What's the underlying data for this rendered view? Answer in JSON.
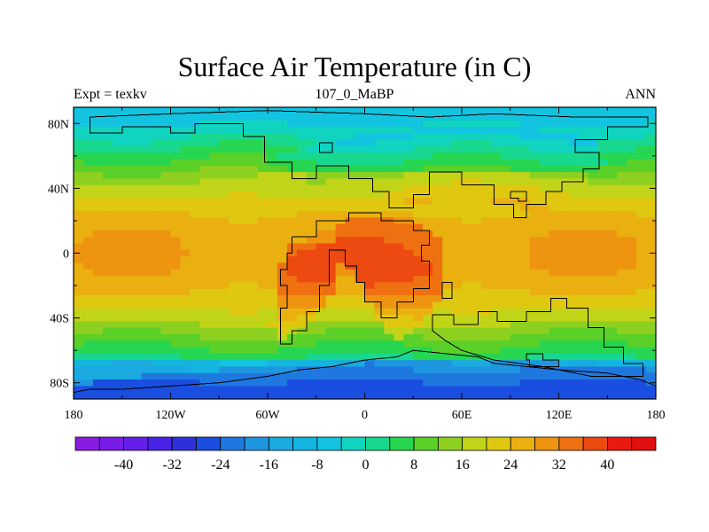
{
  "chart_data": {
    "type": "heatmap",
    "title": "Surface Air Temperature (in C)",
    "left_label": "Expt = texkv",
    "center_label": "107_0_MaBP",
    "right_label": "ANN",
    "x_range": [
      -180,
      180
    ],
    "y_range": [
      -90,
      90
    ],
    "x_ticks": [
      {
        "value": -180,
        "label": "180"
      },
      {
        "value": -120,
        "label": "120W"
      },
      {
        "value": -60,
        "label": "60W"
      },
      {
        "value": 0,
        "label": "0"
      },
      {
        "value": 60,
        "label": "60E"
      },
      {
        "value": 120,
        "label": "120E"
      },
      {
        "value": 180,
        "label": "180"
      }
    ],
    "y_ticks": [
      {
        "value": 80,
        "label": "80N"
      },
      {
        "value": 40,
        "label": "40N"
      },
      {
        "value": 0,
        "label": "0"
      },
      {
        "value": -40,
        "label": "40S"
      },
      {
        "value": -80,
        "label": "80S"
      }
    ],
    "colorbar": {
      "levels": [
        -44,
        -40,
        -36,
        -32,
        -28,
        -24,
        -20,
        -16,
        -12,
        -8,
        -4,
        0,
        4,
        8,
        12,
        16,
        20,
        24,
        28,
        32,
        36,
        40,
        44
      ],
      "colors": [
        "#8a1be0",
        "#7a1ce8",
        "#6420e8",
        "#4a22e6",
        "#3030d8",
        "#1a4ee0",
        "#1f78e0",
        "#1f96e0",
        "#1aaae0",
        "#14b4e0",
        "#12c4e0",
        "#10d4c0",
        "#18d890",
        "#26d650",
        "#5ad028",
        "#8ed020",
        "#c2d418",
        "#e0c810",
        "#eab010",
        "#ee9410",
        "#ee7010",
        "#ec4a10",
        "#e81a12",
        "#e01010"
      ],
      "labels": [
        {
          "value": -40,
          "label": "-40"
        },
        {
          "value": -32,
          "label": "-32"
        },
        {
          "value": -24,
          "label": "-24"
        },
        {
          "value": -16,
          "label": "-16"
        },
        {
          "value": -8,
          "label": "-8"
        },
        {
          "value": 0,
          "label": "0"
        },
        {
          "value": 8,
          "label": "8"
        },
        {
          "value": 16,
          "label": "16"
        },
        {
          "value": 24,
          "label": "24"
        },
        {
          "value": 32,
          "label": "32"
        },
        {
          "value": 40,
          "label": "40"
        }
      ]
    }
  }
}
